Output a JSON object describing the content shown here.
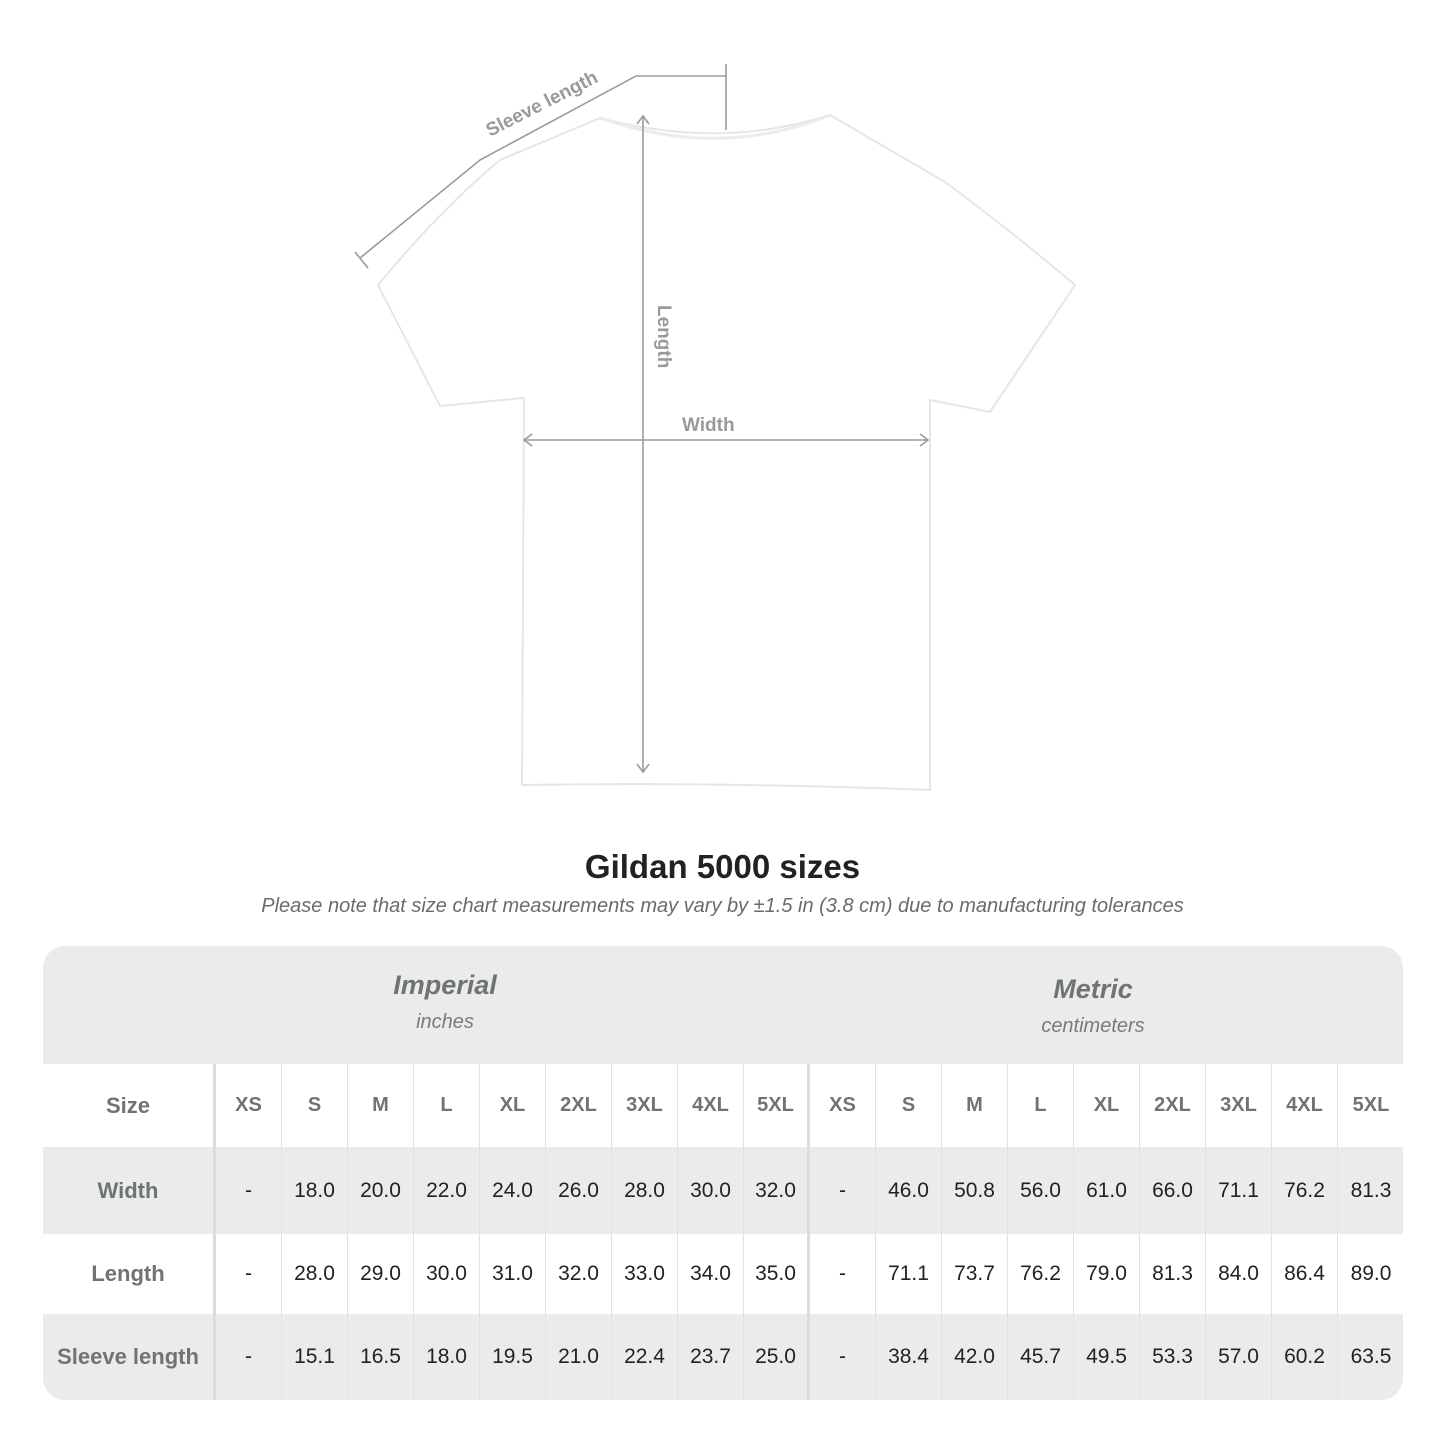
{
  "diagram": {
    "labels": {
      "sleeve": "Sleeve length",
      "length": "Length",
      "width": "Width"
    },
    "line_color": "#9a9a9a"
  },
  "title": "Gildan 5000 sizes",
  "note": "Please note that size chart measurements may vary by ±1.5 in (3.8 cm) due to manufacturing tolerances",
  "table": {
    "imperial": {
      "title": "Imperial",
      "unit": "inches"
    },
    "metric": {
      "title": "Metric",
      "unit": "centimeters"
    },
    "size_label": "Size",
    "sizes": [
      "XS",
      "S",
      "M",
      "L",
      "XL",
      "2XL",
      "3XL",
      "4XL",
      "5XL"
    ],
    "rows": [
      {
        "label": "Width",
        "imperial": [
          "-",
          "18.0",
          "20.0",
          "22.0",
          "24.0",
          "26.0",
          "28.0",
          "30.0",
          "32.0"
        ],
        "metric": [
          "-",
          "46.0",
          "50.8",
          "56.0",
          "61.0",
          "66.0",
          "71.1",
          "76.2",
          "81.3"
        ]
      },
      {
        "label": "Length",
        "imperial": [
          "-",
          "28.0",
          "29.0",
          "30.0",
          "31.0",
          "32.0",
          "33.0",
          "34.0",
          "35.0"
        ],
        "metric": [
          "-",
          "71.1",
          "73.7",
          "76.2",
          "79.0",
          "81.3",
          "84.0",
          "86.4",
          "89.0"
        ]
      },
      {
        "label": "Sleeve length",
        "imperial": [
          "-",
          "15.1",
          "16.5",
          "18.0",
          "19.5",
          "21.0",
          "22.4",
          "23.7",
          "25.0"
        ],
        "metric": [
          "-",
          "38.4",
          "42.0",
          "45.7",
          "49.5",
          "53.3",
          "57.0",
          "60.2",
          "63.5"
        ]
      }
    ],
    "band_color": "#ebebeb"
  }
}
